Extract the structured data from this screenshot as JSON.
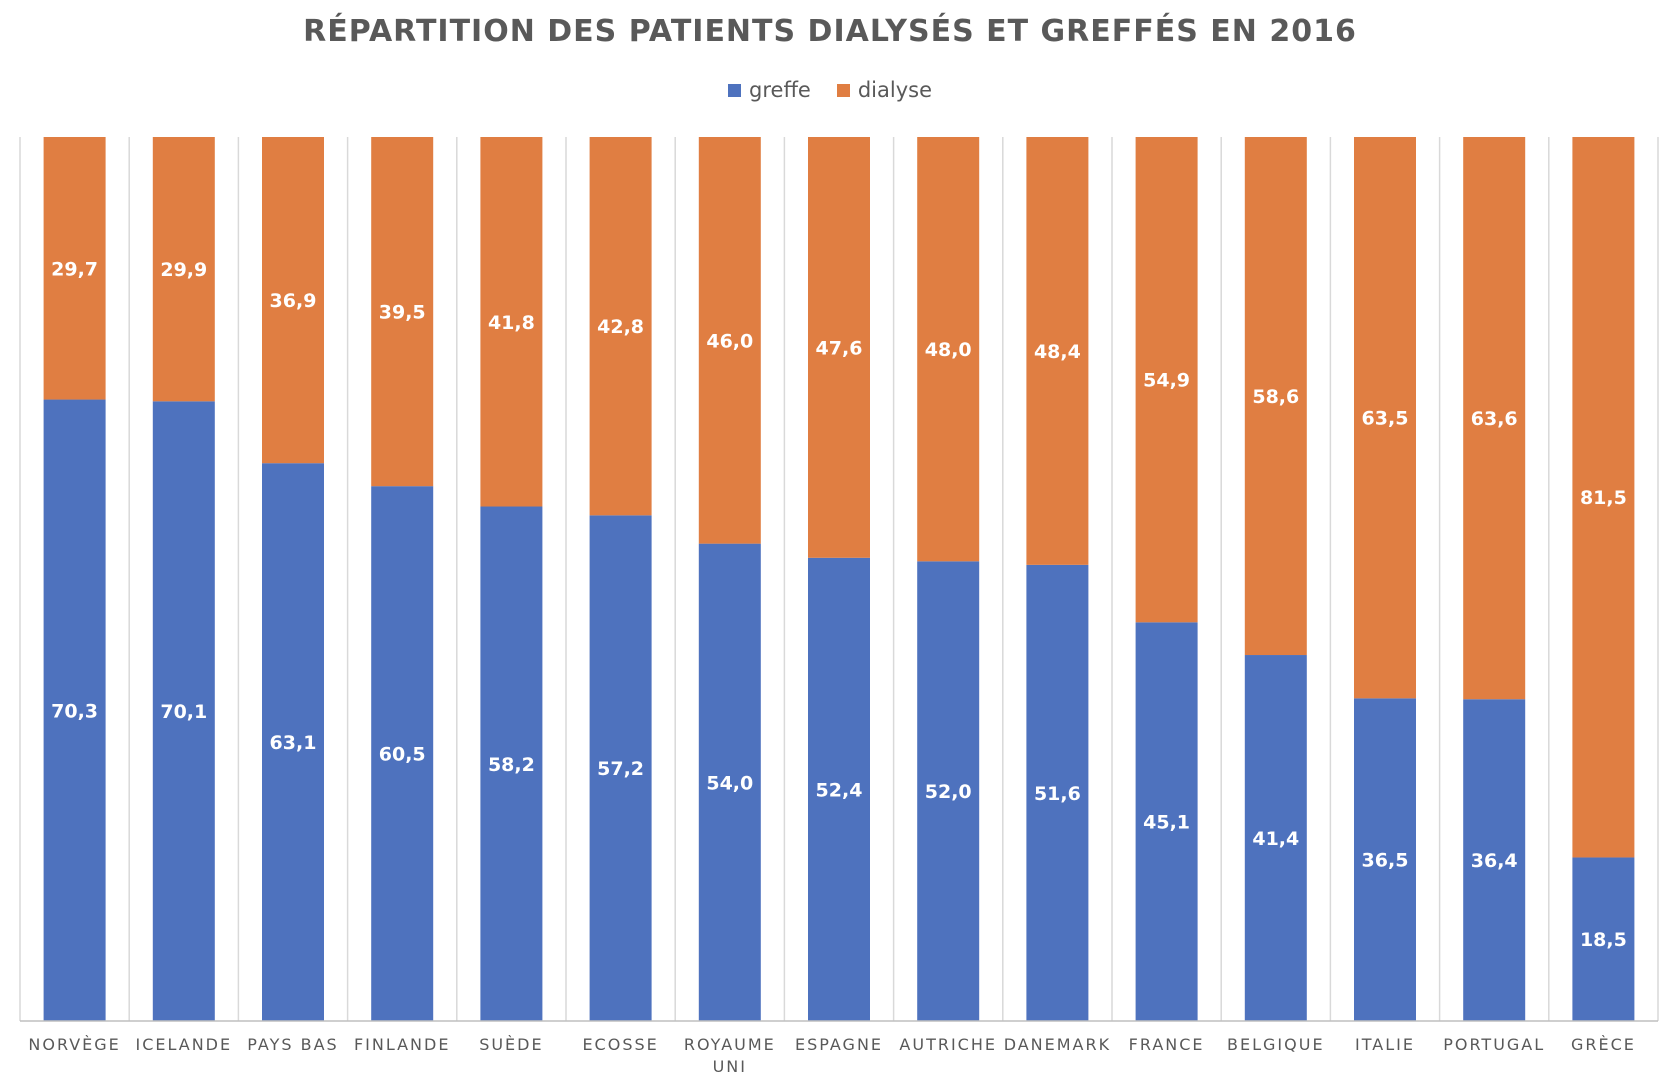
{
  "chart_data": {
    "type": "bar",
    "stacked": true,
    "title": "RÉPARTITION DES PATIENTS DIALYSÉS ET GREFFÉS EN 2016",
    "categories": [
      "NORVÈGE",
      "ICELANDE",
      "PAYS BAS",
      "FINLANDE",
      "SUÈDE",
      "ECOSSE",
      "ROYAUME UNI",
      "ESPAGNE",
      "AUTRICHE",
      "DANEMARK",
      "FRANCE",
      "BELGIQUE",
      "ITALIE",
      "PORTUGAL",
      "GRÈCE"
    ],
    "series": [
      {
        "name": "greffe",
        "color": "#4E72BE",
        "values": [
          70.3,
          70.1,
          63.1,
          60.5,
          58.2,
          57.2,
          54.0,
          52.4,
          52.0,
          51.6,
          45.1,
          41.4,
          36.5,
          36.4,
          18.5
        ],
        "labels": [
          "70,3",
          "70,1",
          "63,1",
          "60,5",
          "58,2",
          "57,2",
          "54,0",
          "52,4",
          "52,0",
          "51,6",
          "45,1",
          "41,4",
          "36,5",
          "36,4",
          "18,5"
        ]
      },
      {
        "name": "dialyse",
        "color": "#E07E42",
        "values": [
          29.7,
          29.9,
          36.9,
          39.5,
          41.8,
          42.8,
          46.0,
          47.6,
          48.0,
          48.4,
          54.9,
          58.6,
          63.5,
          63.6,
          81.5
        ],
        "labels": [
          "29,7",
          "29,9",
          "36,9",
          "39,5",
          "41,8",
          "42,8",
          "46,0",
          "47,6",
          "48,0",
          "48,4",
          "54,9",
          "58,6",
          "63,5",
          "63,6",
          "81,5"
        ]
      }
    ],
    "ylim": [
      0,
      100
    ],
    "grid": "vertical separators",
    "legend_position": "top"
  }
}
